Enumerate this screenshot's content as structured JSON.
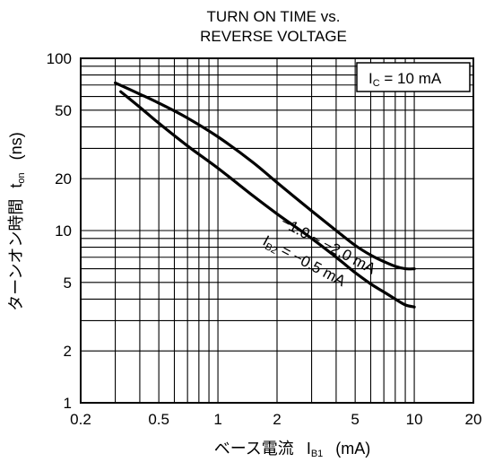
{
  "chart_data": {
    "type": "line",
    "title_lines": [
      "TURN ON TIME vs.",
      "REVERSE VOLTAGE"
    ],
    "xlabel": {
      "prefix": "ベース電流",
      "symbol": "I",
      "subscript": "B1",
      "unit": "(mA)"
    },
    "ylabel": {
      "prefix": "ターンオン時間",
      "symbol": "t",
      "subscript": "on",
      "unit": "(ns)"
    },
    "x_scale": "log",
    "y_scale": "log",
    "xlim": [
      0.2,
      20
    ],
    "ylim": [
      1,
      100
    ],
    "x_tick_labels": [
      "0.2",
      "0.5",
      "1",
      "2",
      "5",
      "10",
      "20"
    ],
    "y_tick_labels": [
      "1",
      "2",
      "5",
      "10",
      "20",
      "50",
      "100"
    ],
    "grid": true,
    "legend_box": {
      "symbol": "I",
      "subscript": "C",
      "value": " = 10 mA"
    },
    "series": [
      {
        "label_text": "−1.0 ~ −2.0 mA",
        "x": [
          0.3,
          0.4,
          0.5,
          0.7,
          1,
          1.5,
          2,
          3,
          4,
          5,
          6,
          7,
          8,
          9,
          10
        ],
        "y": [
          72,
          62,
          55,
          45,
          35,
          25,
          19,
          13,
          10,
          8.2,
          7.2,
          6.6,
          6.2,
          6.0,
          6.0
        ]
      },
      {
        "label_text": "I",
        "label_subscript": "B2",
        "label_suffix": " = −0.5 mA",
        "x": [
          0.32,
          0.4,
          0.5,
          0.7,
          1,
          1.5,
          2,
          3,
          4,
          5,
          6,
          7,
          8,
          9,
          10
        ],
        "y": [
          64,
          52,
          42,
          31,
          23,
          16,
          12.5,
          9,
          7,
          5.7,
          4.9,
          4.4,
          4.0,
          3.7,
          3.6
        ]
      }
    ]
  }
}
